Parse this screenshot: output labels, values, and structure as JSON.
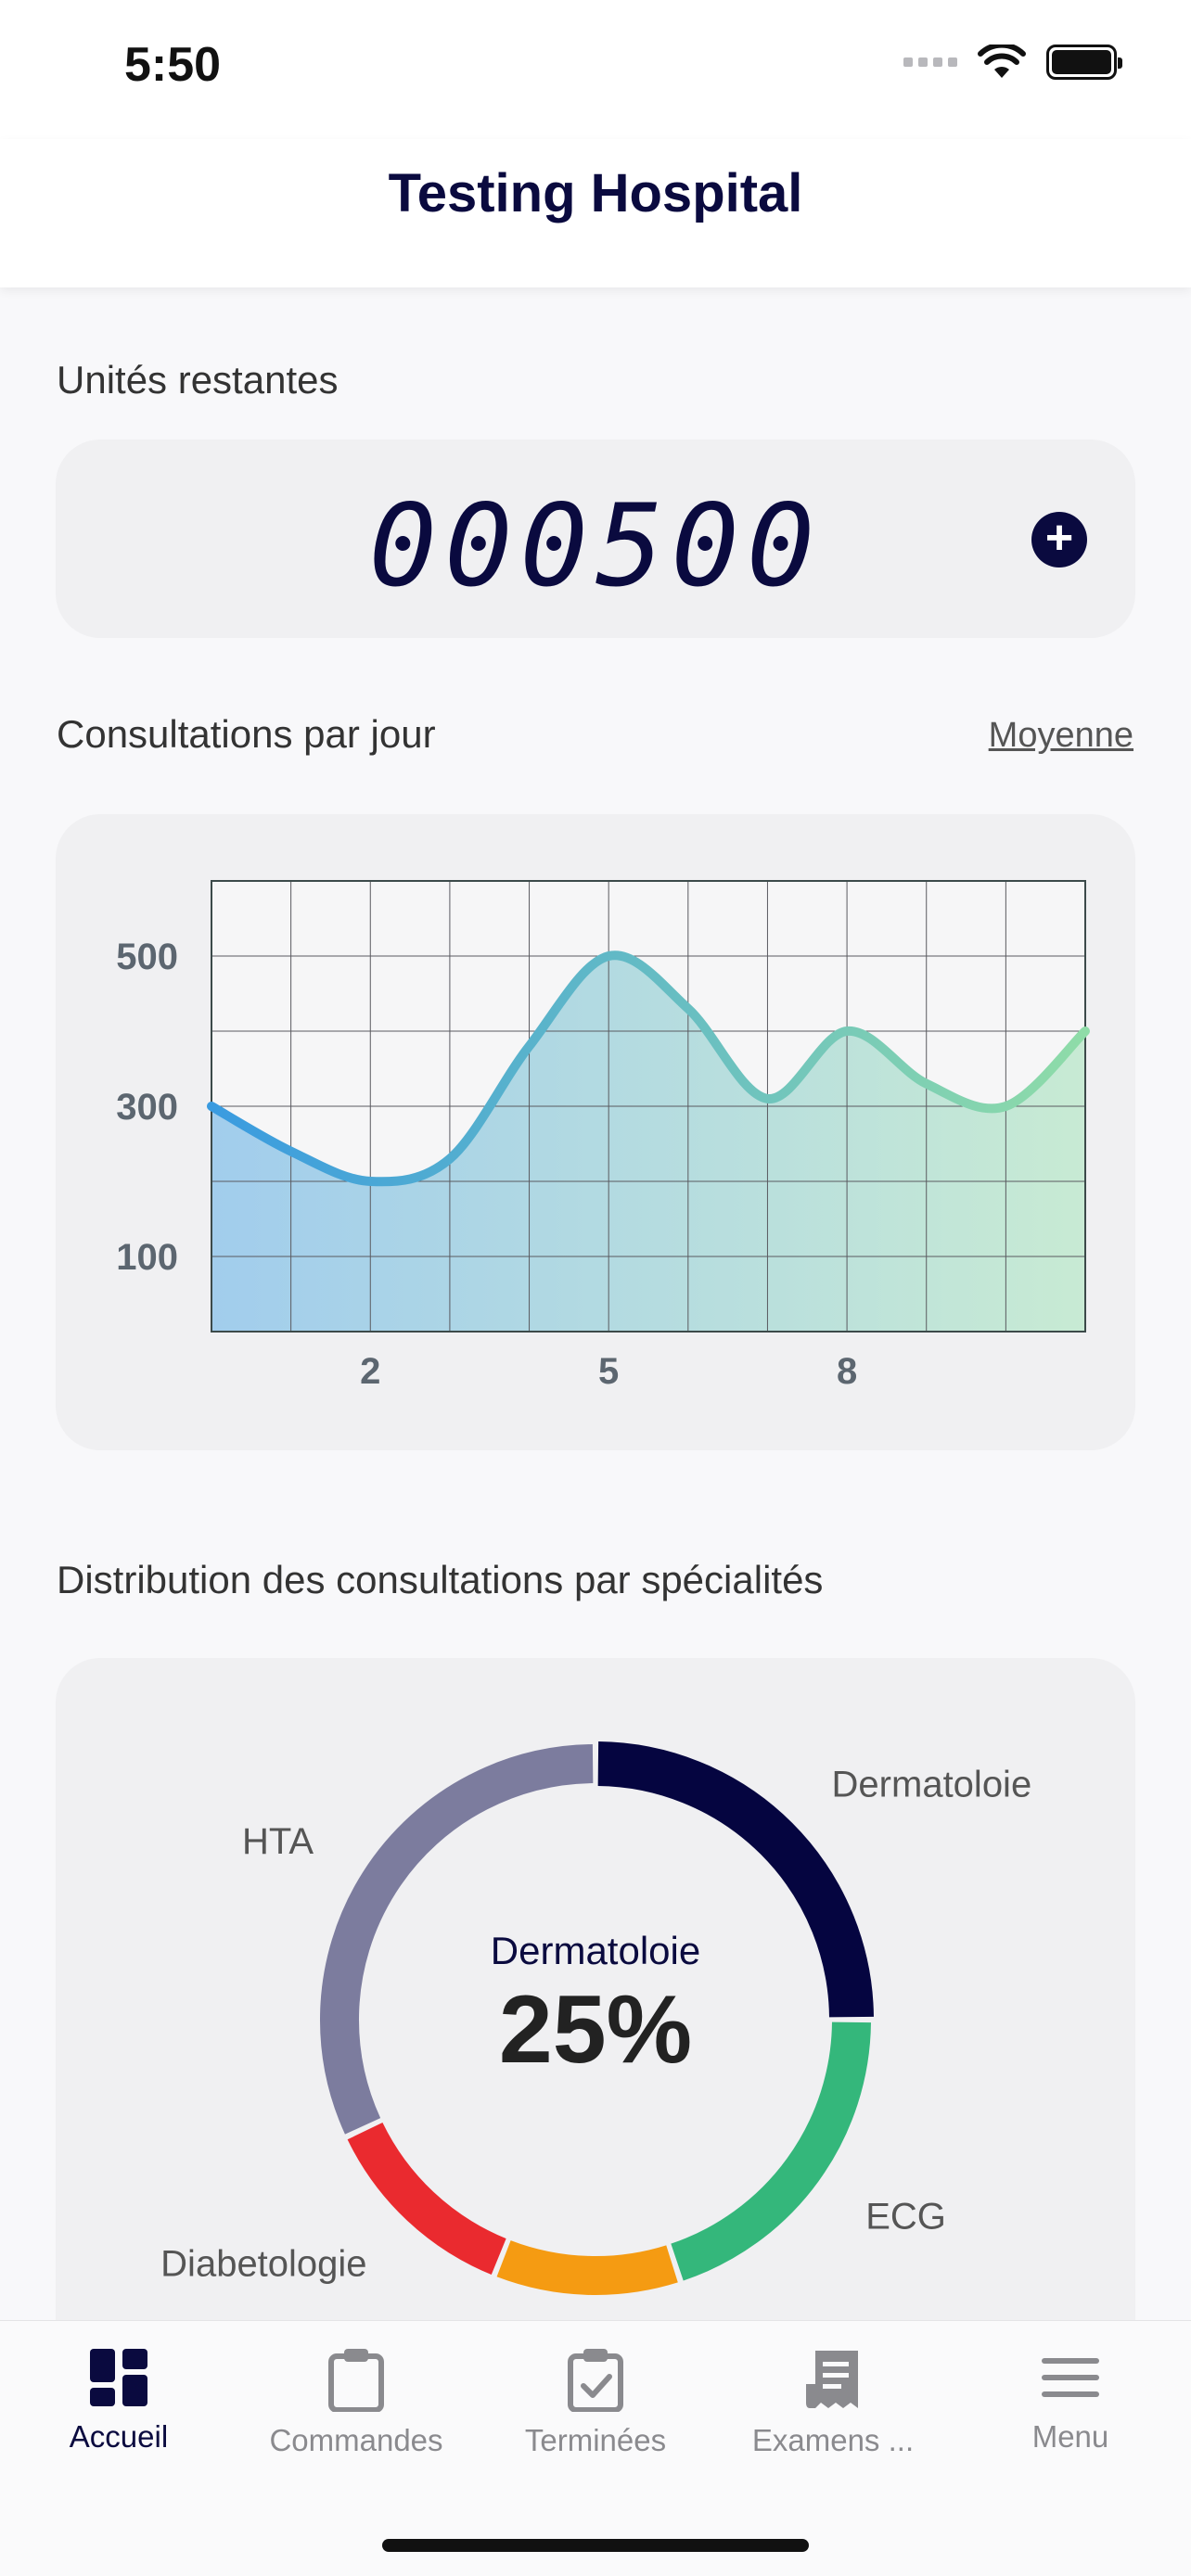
{
  "status_bar": {
    "time": "5:50"
  },
  "header": {
    "title": "Testing Hospital"
  },
  "units": {
    "label": "Unités restantes",
    "value": "000500",
    "add_icon": "plus-circle-icon"
  },
  "consultations": {
    "label": "Consultations par jour",
    "link": "Moyenne"
  },
  "chart_data": {
    "type": "area",
    "title": "",
    "x": [
      0,
      1,
      2,
      3,
      4,
      5,
      6,
      7,
      8,
      9,
      10,
      11
    ],
    "y": [
      300,
      240,
      200,
      230,
      380,
      500,
      430,
      310,
      400,
      330,
      300,
      400
    ],
    "xticks": [
      "2",
      "5",
      "8"
    ],
    "xtick_positions": [
      2,
      5,
      8
    ],
    "yticks": [
      "500",
      "300",
      "100"
    ],
    "ytick_values": [
      500,
      300,
      100
    ],
    "xlim": [
      0,
      11
    ],
    "ylim": [
      0,
      600
    ],
    "grid": true,
    "colors": {
      "start": "#3a9be0",
      "end": "#8fdca8"
    }
  },
  "distribution": {
    "label": "Distribution des consultations par spécialités",
    "center_label": "Dermatoloie",
    "center_value": "25%",
    "segments": [
      {
        "name": "Dermatoloie",
        "percent": 25,
        "color": "#050540"
      },
      {
        "name": "ECG",
        "percent": 20,
        "color": "#34b77b"
      },
      {
        "name": "",
        "percent": 11,
        "color": "#f59b12"
      },
      {
        "name": "Diabetologie",
        "percent": 12,
        "color": "#ea2a2f"
      },
      {
        "name": "HTA",
        "percent": 32,
        "color": "#7c7c9e"
      }
    ]
  },
  "tabs": [
    {
      "label": "Accueil",
      "icon": "grid-icon",
      "active": true
    },
    {
      "label": "Commandes",
      "icon": "clipboard-icon",
      "active": false
    },
    {
      "label": "Terminées",
      "icon": "clipboard-check-icon",
      "active": false
    },
    {
      "label": "Examens ...",
      "icon": "receipt-icon",
      "active": false
    },
    {
      "label": "Menu",
      "icon": "menu-icon",
      "active": false
    }
  ]
}
